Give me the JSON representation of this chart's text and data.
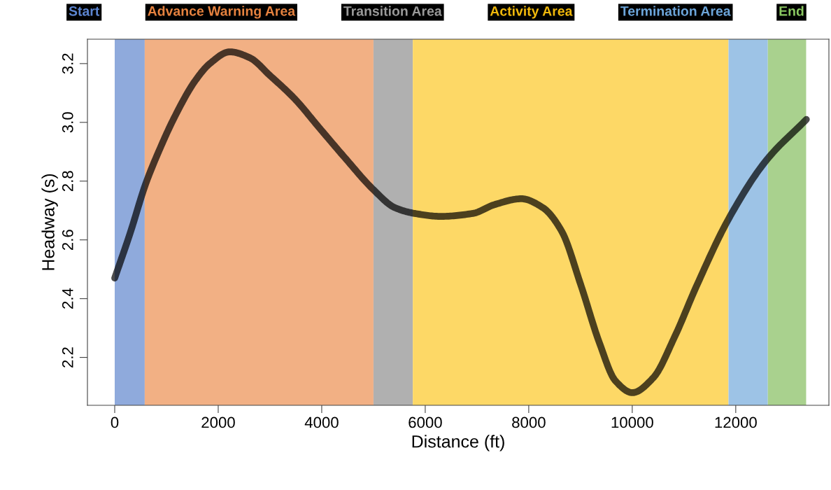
{
  "chart_data": {
    "type": "line",
    "xlabel": "Distance (ft)",
    "ylabel": "Headway (s)",
    "x": [
      0,
      293,
      597,
      873,
      1162,
      1549,
      1838,
      2224,
      2608,
      2996,
      3478,
      3960,
      4445,
      5004,
      5409,
      5796,
      6297,
      6919,
      7338,
      7857,
      8270,
      8635,
      9000,
      9365,
      9676,
      10003,
      10403,
      10819,
      11235,
      11858,
      12587,
      13365
    ],
    "series": [
      {
        "color": "#000000",
        "values": [
          2.47,
          2.62,
          2.79,
          2.91,
          3.02,
          3.14,
          3.2,
          3.24,
          3.22,
          3.16,
          3.08,
          2.98,
          2.88,
          2.77,
          2.71,
          2.69,
          2.68,
          2.69,
          2.72,
          2.74,
          2.71,
          2.63,
          2.45,
          2.25,
          2.12,
          2.08,
          2.13,
          2.27,
          2.44,
          2.67,
          2.87,
          3.01
        ]
      }
    ],
    "xlim": [
      -527,
      13800
    ],
    "ylim": [
      2.037,
      3.283
    ],
    "xticks": [
      0,
      2000,
      4000,
      6000,
      8000,
      10000,
      12000
    ],
    "yticks": [
      2.2,
      2.4,
      2.6,
      2.8,
      {
        "value": 3,
        "label": "3.0"
      },
      3.2
    ],
    "bands": [
      {
        "axis": "x",
        "from": 0,
        "to": 580,
        "label": "Start",
        "color": "#8faadc"
      },
      {
        "axis": "x",
        "from": 580,
        "to": 5000,
        "label": "Advance Warning Area",
        "color": "#f2b084"
      },
      {
        "axis": "x",
        "from": 5000,
        "to": 5760,
        "label": "Transition Area",
        "color": "#b0b0b0"
      },
      {
        "axis": "x",
        "from": 5760,
        "to": 11860,
        "label": "Activity Area",
        "color": "#fdd866"
      },
      {
        "axis": "x",
        "from": 11860,
        "to": 12620,
        "label": "Termination Area",
        "color": "#9dc3e6"
      },
      {
        "axis": "x",
        "from": 12620,
        "to": 13360,
        "label": "End",
        "color": "#a9d18e"
      }
    ],
    "grid": false,
    "legend": false,
    "marker": "none",
    "line_style": "solid"
  }
}
